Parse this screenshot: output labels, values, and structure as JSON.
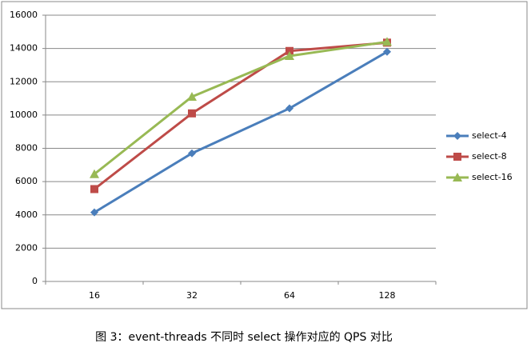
{
  "chart_data": {
    "type": "line",
    "caption": "图 3：event-threads 不同时 select 操作对应的 QPS 对比",
    "categories": [
      "16",
      "32",
      "64",
      "128"
    ],
    "series": [
      {
        "name": "select-4",
        "color": "#4a7ebb",
        "marker": "diamond",
        "values": [
          4150,
          7700,
          10400,
          13800
        ]
      },
      {
        "name": "select-8",
        "color": "#be4b48",
        "marker": "square",
        "values": [
          5550,
          10100,
          13850,
          14350
        ]
      },
      {
        "name": "select-16",
        "color": "#98b954",
        "marker": "triangle",
        "values": [
          6450,
          11100,
          13550,
          14400
        ]
      }
    ],
    "ylim": [
      0,
      16000
    ],
    "yticks": [
      0,
      2000,
      4000,
      6000,
      8000,
      10000,
      12000,
      14000,
      16000
    ],
    "grid": true,
    "legend": "right"
  }
}
